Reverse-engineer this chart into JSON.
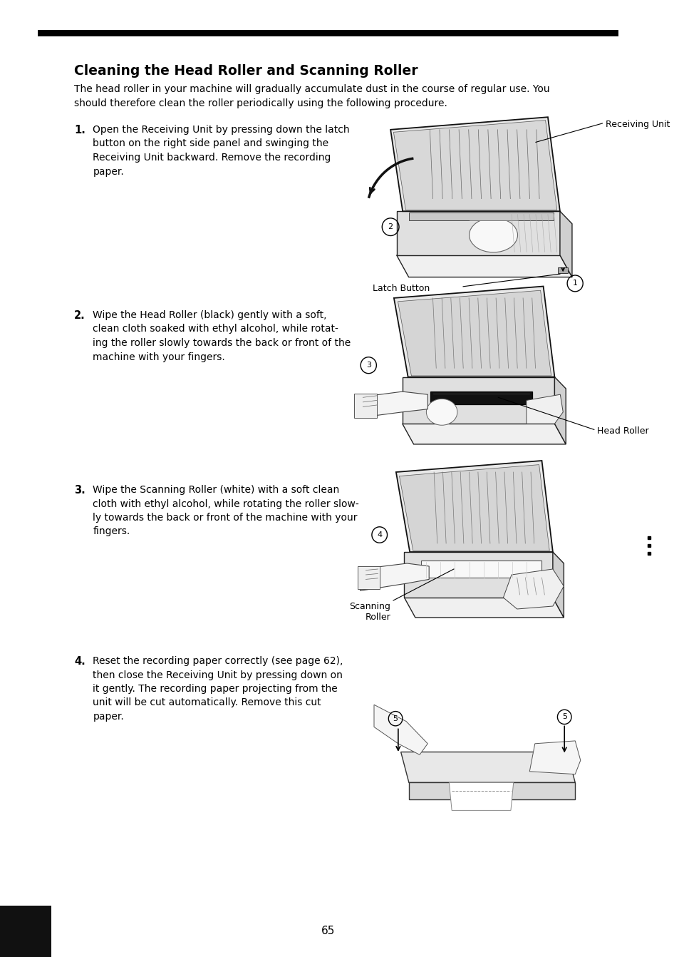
{
  "bg_color": "#ffffff",
  "top_bar_color": "#000000",
  "title": "Cleaning the Head Roller and Scanning Roller",
  "intro_text": "The head roller in your machine will gradually accumulate dust in the course of regular use. You\nshould therefore clean the roller periodically using the following procedure.",
  "steps": [
    {
      "number": "1.",
      "text": "Open the Receiving Unit by pressing down the latch\nbutton on the right side panel and swinging the\nReceiving Unit backward. Remove the recording\npaper."
    },
    {
      "number": "2.",
      "text": "Wipe the Head Roller (black) gently with a soft,\nclean cloth soaked with ethyl alcohol, while rotat-\ning the roller slowly towards the back or front of the\nmachine with your fingers."
    },
    {
      "number": "3.",
      "text": "Wipe the Scanning Roller (white) with a soft clean\ncloth with ethyl alcohol, while rotating the roller slow-\nly towards the back or front of the machine with your\nfingers."
    },
    {
      "number": "4.",
      "text": "Reset the recording paper correctly (see page 62),\nthen close the Receiving Unit by pressing down on\nit gently. The recording paper projecting from the\nunit will be cut automatically. Remove this cut\npaper."
    }
  ],
  "page_number": "65",
  "side_dots": [
    0.578,
    0.57,
    0.562
  ]
}
